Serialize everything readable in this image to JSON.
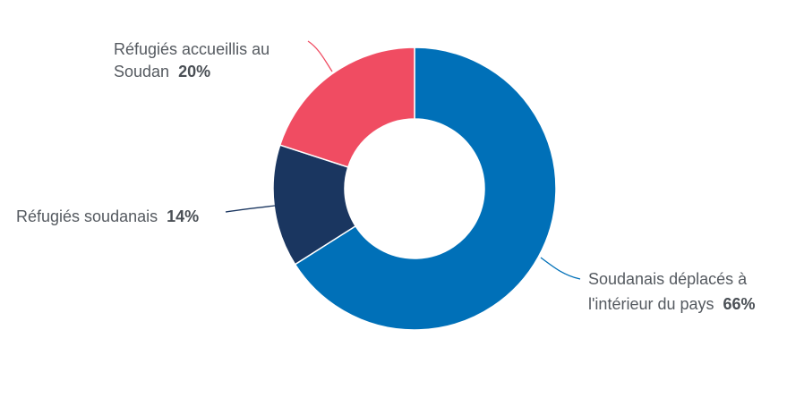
{
  "chart_data": {
    "type": "pie",
    "style": "donut",
    "slices": [
      {
        "label_lines": [
          "Soudanais déplacés à",
          "l'intérieur du pays"
        ],
        "value_label": "66%",
        "value": 66,
        "color": "#0070b8"
      },
      {
        "label_lines": [
          "Réfugiés soudanais"
        ],
        "value_label": "14%",
        "value": 14,
        "color": "#1a3660"
      },
      {
        "label_lines": [
          "Réfugiés accueillis au",
          "Soudan"
        ],
        "value_label": "20%",
        "value": 20,
        "color": "#f04c62"
      }
    ],
    "legend": "none",
    "grid": false
  }
}
